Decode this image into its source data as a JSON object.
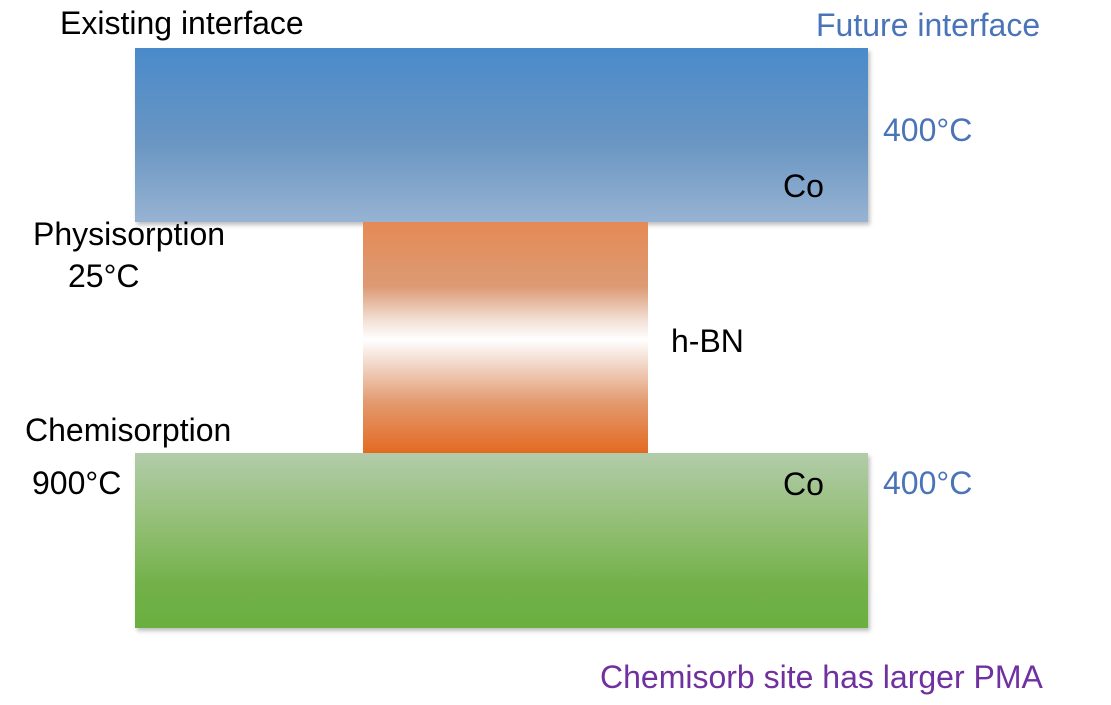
{
  "labels": {
    "existing_interface": "Existing interface",
    "future_interface": "Future interface",
    "top_layer_material": "Co",
    "top_layer_temp": "400°C",
    "physisorption": "Physisorption",
    "physisorption_temp": "25°C",
    "middle_layer_material": "h-BN",
    "chemisorption": "Chemisorption",
    "chemisorption_temp": "900°C",
    "bottom_layer_material": "Co",
    "bottom_layer_temp": "400°C",
    "conclusion": "Chemisorb site has larger PMA"
  },
  "colors": {
    "text_black": "#000000",
    "text_blue": "#4a74b8",
    "text_purple": "#7030a0",
    "co_top": "#4a8acb",
    "hbn": "#e36a22",
    "co_bottom": "#6aaf40"
  }
}
